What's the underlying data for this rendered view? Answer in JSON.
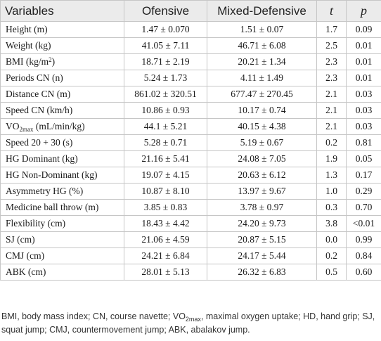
{
  "table": {
    "headers": [
      "Variables",
      "Ofensive",
      "Mixed-Defensive",
      "t",
      "p"
    ],
    "rows": [
      {
        "var": "Height (m)",
        "ofensive": "1.47 ± 0.070",
        "mixed": "1.51 ± 0.07",
        "t": "1.7",
        "p": "0.09"
      },
      {
        "var": "Weight (kg)",
        "ofensive": "41.05 ± 7.11",
        "mixed": "46.71 ± 6.08",
        "t": "2.5",
        "p": "0.01"
      },
      {
        "var_main": "BMI (kg/m",
        "var_sup": "2",
        "var_tail": ")",
        "ofensive": "18.71 ± 2.19",
        "mixed": "20.21 ± 1.34",
        "t": "2.3",
        "p": "0.01"
      },
      {
        "var": "Periods CN (n)",
        "ofensive": "5.24 ± 1.73",
        "mixed": "4.11 ± 1.49",
        "t": "2.3",
        "p": "0.01"
      },
      {
        "var": "Distance CN (m)",
        "ofensive": "861.02 ± 320.51",
        "mixed": "677.47 ± 270.45",
        "t": "2.1",
        "p": "0.03"
      },
      {
        "var": "Speed CN (km/h)",
        "ofensive": "10.86 ± 0.93",
        "mixed": "10.17 ± 0.74",
        "t": "2.1",
        "p": "0.03"
      },
      {
        "var_main": "VO",
        "var_sub": "2max",
        "var_tail": " (mL/min/kg)",
        "ofensive": "44.1 ± 5.21",
        "mixed": "40.15 ± 4.38",
        "t": "2.1",
        "p": "0.03"
      },
      {
        "var": "Speed 20 + 30 (s)",
        "ofensive": "5.28 ± 0.71",
        "mixed": "5.19 ± 0.67",
        "t": "0.2",
        "p": "0.81"
      },
      {
        "var": "HG Dominant (kg)",
        "ofensive": "21.16 ± 5.41",
        "mixed": "24.08 ± 7.05",
        "t": "1.9",
        "p": "0.05"
      },
      {
        "var": "HG Non-Dominant (kg)",
        "ofensive": "19.07 ± 4.15",
        "mixed": "20.63 ± 6.12",
        "t": "1.3",
        "p": "0.17"
      },
      {
        "var": "Asymmetry HG (%)",
        "ofensive": "10.87 ± 8.10",
        "mixed": "13.97 ± 9.67",
        "t": "1.0",
        "p": "0.29"
      },
      {
        "var": "Medicine ball throw (m)",
        "ofensive": "3.85 ± 0.83",
        "mixed": "3.78 ± 0.97",
        "t": "0.3",
        "p": "0.70"
      },
      {
        "var": "Flexibility (cm)",
        "ofensive": "18.43 ± 4.42",
        "mixed": "24.20 ± 9.73",
        "t": "3.8",
        "p": "<0.01"
      },
      {
        "var": "SJ (cm)",
        "ofensive": "21.06 ± 4.59",
        "mixed": "20.87 ± 5.15",
        "t": "0.0",
        "p": "0.99"
      },
      {
        "var": "CMJ (cm)",
        "ofensive": "24.21 ± 6.84",
        "mixed": "24.17 ± 5.44",
        "t": "0.2",
        "p": "0.84"
      },
      {
        "var": "ABK (cm)",
        "ofensive": "28.01 ± 5.13",
        "mixed": "26.32 ± 6.83",
        "t": "0.5",
        "p": "0.60"
      }
    ]
  },
  "footnote": {
    "part1": "BMI, body mass index; CN, course navette; VO",
    "sub": "2max",
    "part2": ", maximal oxygen uptake; HD, hand grip; SJ, squat jump; CMJ, countermovement jump; ABK, abalakov jump."
  }
}
